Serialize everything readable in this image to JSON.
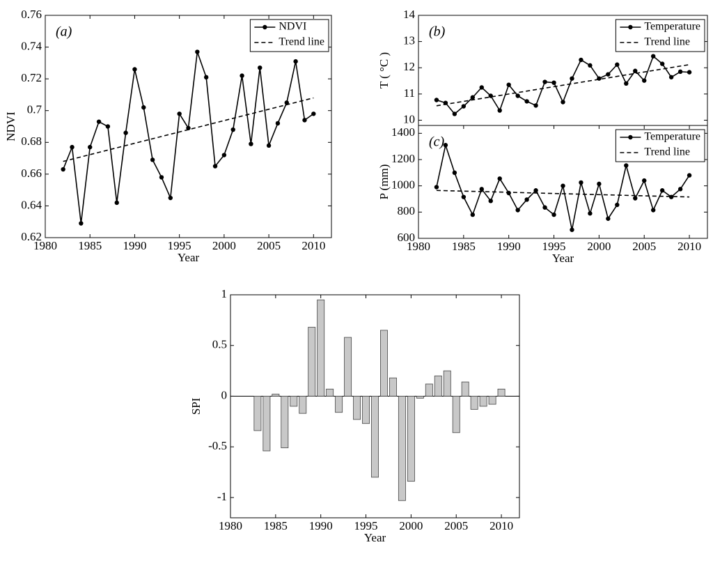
{
  "chart_data": [
    {
      "type": "line",
      "annotation": "(a)",
      "x_label": "Year",
      "y_label": "NDVI",
      "xlim": [
        1980,
        2012
      ],
      "xticks": [
        1980,
        1985,
        1990,
        1995,
        2000,
        2005,
        2010
      ],
      "ylim": [
        0.62,
        0.76
      ],
      "yticks": [
        0.62,
        0.64,
        0.66,
        0.68,
        0.7,
        0.72,
        0.74,
        0.76
      ],
      "legend": "upper right",
      "series": [
        {
          "name": "NDVI",
          "color": "#000000",
          "marker": true,
          "x": [
            1982,
            1983,
            1984,
            1985,
            1986,
            1987,
            1988,
            1989,
            1990,
            1991,
            1992,
            1993,
            1994,
            1995,
            1996,
            1997,
            1998,
            1999,
            2000,
            2001,
            2002,
            2003,
            2004,
            2005,
            2006,
            2007,
            2008,
            2009,
            2010
          ],
          "values": [
            0.663,
            0.677,
            0.629,
            0.677,
            0.693,
            0.69,
            0.642,
            0.686,
            0.726,
            0.702,
            0.669,
            0.658,
            0.645,
            0.698,
            0.689,
            0.737,
            0.721,
            0.665,
            0.672,
            0.688,
            0.722,
            0.679,
            0.727,
            0.678,
            0.692,
            0.705,
            0.731,
            0.694,
            0.698
          ]
        },
        {
          "name": "Trend line",
          "color": "#000000",
          "dashed": true,
          "x": [
            1982,
            2010
          ],
          "values": [
            0.668,
            0.708
          ]
        }
      ]
    },
    {
      "type": "line",
      "annotation": "(b)",
      "y_label": "T ( °C )",
      "xlim": [
        1980,
        2012
      ],
      "ylim": [
        9.8,
        14
      ],
      "yticks": [
        10,
        11,
        12,
        13,
        14
      ],
      "legend": "upper right",
      "series": [
        {
          "name": "Temperature",
          "color": "#000000",
          "marker": true,
          "x": [
            1982,
            1983,
            1984,
            1985,
            1986,
            1987,
            1988,
            1989,
            1990,
            1991,
            1992,
            1993,
            1994,
            1995,
            1996,
            1997,
            1998,
            1999,
            2000,
            2001,
            2002,
            2003,
            2004,
            2005,
            2006,
            2007,
            2008,
            2009,
            2010
          ],
          "values": [
            10.77,
            10.66,
            10.24,
            10.53,
            10.87,
            11.25,
            10.93,
            10.37,
            11.35,
            10.93,
            10.72,
            10.56,
            11.46,
            11.43,
            10.69,
            11.59,
            12.3,
            12.09,
            11.59,
            11.75,
            12.12,
            11.4,
            11.88,
            11.51,
            12.44,
            12.15,
            11.64,
            11.85,
            11.83
          ]
        },
        {
          "name": "Trend line",
          "color": "#000000",
          "dashed": true,
          "x": [
            1982,
            2010
          ],
          "values": [
            10.55,
            12.12
          ]
        }
      ]
    },
    {
      "type": "line",
      "annotation": "(c)",
      "x_label": "Year",
      "y_label": "P (mm)",
      "xlim": [
        1980,
        2012
      ],
      "xticks": [
        1980,
        1985,
        1990,
        1995,
        2000,
        2005,
        2010
      ],
      "ylim": [
        600,
        1460
      ],
      "yticks": [
        600,
        800,
        1000,
        1200,
        1400
      ],
      "legend": "upper right",
      "series": [
        {
          "name": "Temperature",
          "color": "#000000",
          "marker": true,
          "x": [
            1982,
            1983,
            1984,
            1985,
            1986,
            1987,
            1988,
            1989,
            1990,
            1991,
            1992,
            1993,
            1994,
            1995,
            1996,
            1997,
            1998,
            1999,
            2000,
            2001,
            2002,
            2003,
            2004,
            2005,
            2006,
            2007,
            2008,
            2009,
            2010
          ],
          "values": [
            990,
            1310,
            1100,
            915,
            780,
            975,
            885,
            1055,
            945,
            815,
            895,
            965,
            835,
            780,
            1000,
            665,
            1025,
            790,
            1015,
            750,
            855,
            1155,
            905,
            1040,
            815,
            965,
            915,
            975,
            1080
          ]
        },
        {
          "name": "Trend line",
          "color": "#000000",
          "dashed": true,
          "x": [
            1982,
            2010
          ],
          "values": [
            965,
            915
          ]
        }
      ]
    },
    {
      "type": "bar",
      "x_label": "Year",
      "y_label": "SPI",
      "color": "#c8c8c8",
      "xlim": [
        1980,
        2012
      ],
      "xticks": [
        1980,
        1985,
        1990,
        1995,
        2000,
        2005,
        2010
      ],
      "ylim": [
        -1.2,
        1
      ],
      "yticks": [
        -1,
        -0.5,
        0,
        0.5,
        1
      ],
      "x": [
        1983,
        1984,
        1985,
        1986,
        1987,
        1988,
        1989,
        1990,
        1991,
        1992,
        1993,
        1994,
        1995,
        1996,
        1997,
        1998,
        1999,
        2000,
        2001,
        2002,
        2003,
        2004,
        2005,
        2006,
        2007,
        2008,
        2009,
        2010
      ],
      "values": [
        -0.34,
        -0.54,
        0.02,
        -0.51,
        -0.1,
        -0.17,
        0.68,
        0.95,
        0.07,
        -0.16,
        0.58,
        -0.23,
        -0.27,
        -0.8,
        0.65,
        0.18,
        -1.03,
        -0.84,
        -0.02,
        0.12,
        0.2,
        0.25,
        -0.36,
        0.14,
        -0.13,
        -0.1,
        -0.08,
        0.07
      ]
    }
  ]
}
